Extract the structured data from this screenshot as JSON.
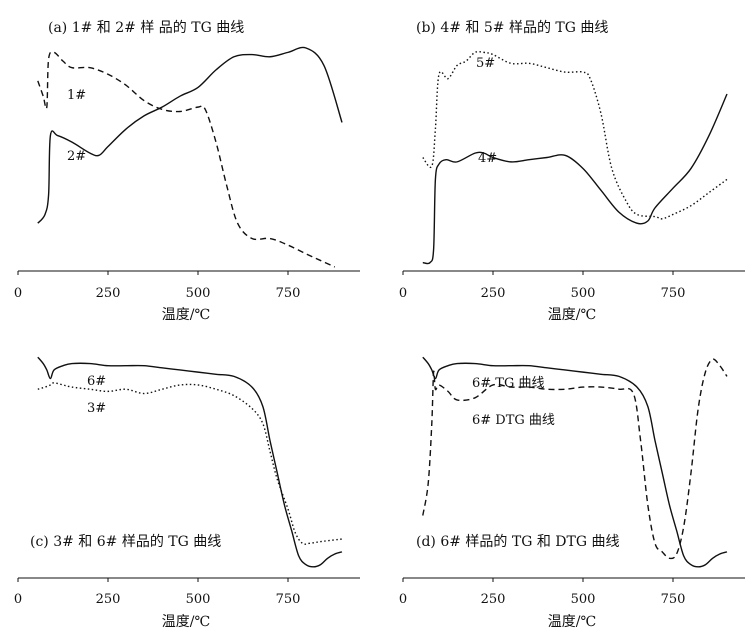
{
  "chart_data": [
    {
      "type": "line",
      "title": "(a) 1# 和 2# 样 品的 TG 曲线",
      "xlabel": "温度/℃",
      "xticks": [
        0,
        250,
        500,
        750
      ],
      "xlim": [
        0,
        900
      ],
      "ylabel": "",
      "y_axis_shown": false,
      "series": [
        {
          "name": "1#",
          "style": "dashed",
          "x": [
            55,
            70,
            80,
            85,
            100,
            125,
            150,
            200,
            250,
            300,
            350,
            400,
            450,
            500,
            520,
            550,
            580,
            610,
            650,
            700,
            750,
            800,
            840,
            880
          ],
          "y": [
            0.85,
            0.78,
            0.73,
            0.95,
            0.98,
            0.94,
            0.91,
            0.91,
            0.88,
            0.83,
            0.76,
            0.72,
            0.71,
            0.73,
            0.72,
            0.57,
            0.37,
            0.2,
            0.13,
            0.13,
            0.1,
            0.06,
            0.03,
            0.0
          ]
        },
        {
          "name": "2#",
          "style": "solid",
          "x": [
            55,
            75,
            85,
            90,
            110,
            150,
            200,
            225,
            250,
            300,
            350,
            400,
            450,
            500,
            550,
            600,
            650,
            700,
            750,
            800,
            850,
            900
          ],
          "y": [
            0.2,
            0.24,
            0.33,
            0.6,
            0.6,
            0.57,
            0.52,
            0.51,
            0.55,
            0.63,
            0.69,
            0.73,
            0.78,
            0.82,
            0.9,
            0.96,
            0.97,
            0.96,
            0.98,
            1.0,
            0.92,
            0.66
          ]
        }
      ]
    },
    {
      "type": "line",
      "title": "(b) 4# 和 5# 样品的 TG 曲线",
      "xlabel": "温度/℃",
      "xticks": [
        0,
        250,
        500,
        750
      ],
      "xlim": [
        0,
        900
      ],
      "ylabel": "",
      "y_axis_shown": false,
      "series": [
        {
          "name": "5#",
          "style": "dotted",
          "x": [
            55,
            80,
            90,
            100,
            125,
            150,
            175,
            200,
            225,
            250,
            300,
            350,
            400,
            450,
            500,
            520,
            550,
            580,
            620,
            650,
            700,
            720,
            750,
            800,
            850,
            900
          ],
          "y": [
            0.5,
            0.46,
            0.63,
            0.88,
            0.86,
            0.92,
            0.94,
            0.98,
            0.98,
            0.97,
            0.93,
            0.93,
            0.91,
            0.89,
            0.89,
            0.86,
            0.7,
            0.45,
            0.3,
            0.24,
            0.23,
            0.22,
            0.24,
            0.28,
            0.34,
            0.4
          ]
        },
        {
          "name": "4#",
          "style": "solid",
          "x": [
            55,
            75,
            85,
            90,
            100,
            120,
            150,
            200,
            225,
            250,
            300,
            350,
            400,
            450,
            500,
            550,
            600,
            650,
            680,
            700,
            750,
            800,
            850,
            900
          ],
          "y": [
            0.02,
            0.02,
            0.08,
            0.4,
            0.47,
            0.49,
            0.48,
            0.52,
            0.52,
            0.5,
            0.48,
            0.49,
            0.5,
            0.51,
            0.45,
            0.35,
            0.25,
            0.2,
            0.21,
            0.27,
            0.36,
            0.45,
            0.6,
            0.79
          ]
        }
      ]
    },
    {
      "type": "line",
      "title": "(c) 3# 和 6# 样品的 TG 曲线",
      "xlabel": "温度/℃",
      "xticks": [
        0,
        250,
        500,
        750
      ],
      "xlim": [
        0,
        900
      ],
      "ylabel": "",
      "y_axis_shown": false,
      "series": [
        {
          "name": "6#",
          "style": "solid",
          "x": [
            55,
            70,
            80,
            90,
            100,
            125,
            150,
            200,
            250,
            300,
            350,
            400,
            450,
            500,
            550,
            600,
            650,
            680,
            700,
            720,
            740,
            760,
            780,
            800,
            820,
            840,
            860,
            880,
            900
          ],
          "y": [
            0.99,
            0.96,
            0.93,
            0.89,
            0.93,
            0.95,
            0.96,
            0.96,
            0.95,
            0.95,
            0.95,
            0.94,
            0.93,
            0.92,
            0.91,
            0.9,
            0.85,
            0.76,
            0.6,
            0.45,
            0.3,
            0.18,
            0.06,
            0.02,
            0.01,
            0.02,
            0.05,
            0.07,
            0.08
          ]
        },
        {
          "name": "3#",
          "style": "dotted",
          "x": [
            55,
            75,
            90,
            100,
            125,
            150,
            200,
            250,
            300,
            350,
            400,
            450,
            500,
            550,
            600,
            650,
            680,
            700,
            720,
            750,
            770,
            790,
            810,
            850,
            900
          ],
          "y": [
            0.84,
            0.85,
            0.86,
            0.87,
            0.86,
            0.85,
            0.84,
            0.83,
            0.84,
            0.82,
            0.84,
            0.86,
            0.86,
            0.84,
            0.81,
            0.75,
            0.68,
            0.55,
            0.42,
            0.28,
            0.17,
            0.12,
            0.12,
            0.13,
            0.14
          ]
        }
      ]
    },
    {
      "type": "line",
      "title": "(d) 6# 样品的 TG 和 DTG 曲线",
      "xlabel": "温度/℃",
      "xticks": [
        0,
        250,
        500,
        750
      ],
      "xlim": [
        0,
        900
      ],
      "ylabel": "",
      "y_axis_shown": false,
      "series": [
        {
          "name": "6# TG 曲线",
          "style": "solid",
          "x": [
            55,
            70,
            80,
            90,
            100,
            125,
            150,
            200,
            250,
            300,
            350,
            400,
            450,
            500,
            550,
            600,
            650,
            680,
            700,
            720,
            740,
            760,
            780,
            800,
            820,
            840,
            860,
            880,
            900
          ],
          "y": [
            0.99,
            0.96,
            0.93,
            0.89,
            0.93,
            0.95,
            0.96,
            0.96,
            0.95,
            0.95,
            0.95,
            0.94,
            0.93,
            0.92,
            0.91,
            0.9,
            0.85,
            0.76,
            0.6,
            0.45,
            0.3,
            0.18,
            0.06,
            0.02,
            0.01,
            0.02,
            0.05,
            0.07,
            0.08
          ]
        },
        {
          "name": "6# DTG 曲线",
          "style": "dashed",
          "x": [
            55,
            70,
            80,
            85,
            90,
            100,
            125,
            150,
            200,
            250,
            300,
            350,
            400,
            450,
            500,
            550,
            600,
            640,
            660,
            680,
            700,
            720,
            740,
            760,
            780,
            800,
            820,
            840,
            860,
            880,
            900
          ],
          "y": [
            0.25,
            0.4,
            0.68,
            0.92,
            0.84,
            0.86,
            0.83,
            0.79,
            0.8,
            0.86,
            0.85,
            0.85,
            0.84,
            0.84,
            0.85,
            0.85,
            0.84,
            0.82,
            0.6,
            0.3,
            0.12,
            0.08,
            0.05,
            0.07,
            0.2,
            0.45,
            0.75,
            0.92,
            0.98,
            0.95,
            0.9
          ]
        }
      ]
    }
  ]
}
